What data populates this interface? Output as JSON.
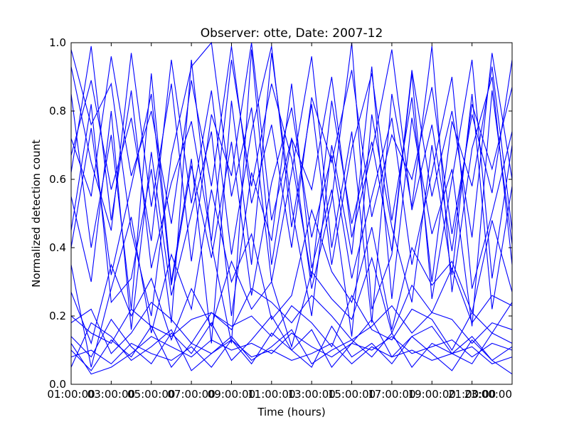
{
  "chart_data": {
    "type": "line",
    "title": "Observer: otte, Date: 2007-12",
    "xlabel": "Time (hours)",
    "ylabel": "Normalized detection count",
    "x_tick_labels": [
      "01:00:00",
      "03:00:00",
      "05:00:00",
      "07:00:00",
      "09:00:00",
      "11:00:00",
      "13:00:00",
      "15:00:00",
      "17:00:00",
      "19:00:00",
      "21:00:00",
      "23:00:00"
    ],
    "y_tick_labels": [
      "0.0",
      "0.2",
      "0.4",
      "0.6",
      "0.8",
      "1.0"
    ],
    "xlim": [
      1,
      23
    ],
    "ylim": [
      0,
      1
    ],
    "grid": false,
    "line_color": "#0000ff",
    "x": [
      1,
      2,
      3,
      4,
      5,
      6,
      7,
      8,
      9,
      10,
      11,
      12,
      13,
      14,
      15,
      16,
      17,
      18,
      19,
      20,
      21,
      22,
      23
    ],
    "series": [
      {
        "values": [
          0.45,
          0.82,
          0.24,
          0.31,
          0.63,
          0.18,
          0.95,
          0.41,
          0.12,
          0.98,
          0.35,
          0.72,
          0.28,
          0.54,
          1.0,
          0.22,
          0.38,
          0.91,
          0.25,
          0.6,
          0.95,
          0.31,
          0.7
        ]
      },
      {
        "values": [
          0.12,
          0.03,
          0.05,
          0.09,
          0.14,
          0.11,
          0.08,
          0.13,
          0.1,
          0.12,
          0.09,
          0.15,
          0.11,
          0.08,
          0.12,
          0.1,
          0.14,
          0.09,
          0.11,
          0.13,
          0.08,
          0.12,
          0.1
        ]
      },
      {
        "values": [
          0.98,
          0.76,
          0.88,
          0.45,
          0.2,
          0.67,
          0.93,
          1.0,
          0.55,
          0.81,
          0.3,
          0.62,
          0.96,
          0.4,
          0.74,
          0.18,
          0.85,
          0.52,
          0.99,
          0.27,
          0.69,
          0.9,
          0.35
        ]
      },
      {
        "values": [
          0.2,
          0.15,
          0.12,
          0.22,
          0.17,
          0.14,
          0.19,
          0.21,
          0.16,
          0.28,
          0.24,
          0.18,
          0.26,
          0.2,
          0.13,
          0.17,
          0.23,
          0.15,
          0.21,
          0.19,
          0.12,
          0.18,
          0.16
        ]
      },
      {
        "values": [
          0.62,
          0.99,
          0.48,
          0.86,
          0.34,
          0.59,
          0.77,
          0.42,
          0.95,
          0.58,
          0.88,
          0.66,
          0.31,
          0.83,
          0.47,
          0.71,
          0.39,
          0.92,
          0.55,
          0.8,
          0.43,
          0.97,
          0.6
        ]
      },
      {
        "values": [
          0.08,
          0.1,
          0.06,
          0.12,
          0.09,
          0.07,
          0.11,
          0.05,
          0.13,
          0.08,
          0.1,
          0.07,
          0.09,
          0.12,
          0.06,
          0.11,
          0.08,
          0.1,
          0.07,
          0.09,
          0.11,
          0.06,
          0.08
        ]
      },
      {
        "values": [
          0.35,
          0.05,
          0.28,
          0.49,
          0.15,
          0.38,
          0.22,
          0.57,
          0.3,
          0.44,
          0.19,
          0.26,
          0.51,
          0.33,
          0.24,
          0.46,
          0.16,
          0.4,
          0.29,
          0.36,
          0.21,
          0.48,
          0.27
        ]
      },
      {
        "values": [
          0.85,
          0.4,
          0.73,
          0.22,
          0.91,
          0.3,
          0.66,
          0.12,
          0.83,
          0.35,
          0.97,
          0.52,
          0.2,
          0.7,
          0.38,
          0.93,
          0.25,
          0.78,
          0.44,
          0.63,
          0.17,
          0.86,
          0.41
        ]
      },
      {
        "values": [
          0.18,
          0.22,
          0.09,
          0.15,
          0.24,
          0.19,
          0.12,
          0.21,
          0.17,
          0.2,
          0.14,
          0.23,
          0.18,
          0.11,
          0.26,
          0.16,
          0.13,
          0.22,
          0.19,
          0.1,
          0.21,
          0.15,
          0.24
        ]
      },
      {
        "values": [
          0.72,
          0.55,
          0.96,
          0.61,
          0.8,
          0.47,
          0.89,
          0.58,
          0.99,
          0.53,
          0.76,
          0.4,
          0.84,
          0.65,
          0.92,
          0.49,
          0.73,
          0.6,
          0.87,
          0.44,
          0.79,
          0.56,
          0.95
        ]
      },
      {
        "values": [
          0.05,
          0.18,
          0.14,
          0.07,
          0.11,
          0.16,
          0.04,
          0.09,
          0.13,
          0.06,
          0.15,
          0.1,
          0.05,
          0.17,
          0.08,
          0.12,
          0.06,
          0.14,
          0.09,
          0.04,
          0.13,
          0.07,
          0.11
        ]
      },
      {
        "values": [
          0.55,
          0.3,
          0.8,
          0.16,
          0.68,
          0.26,
          0.5,
          0.74,
          0.2,
          0.62,
          0.42,
          0.88,
          0.34,
          0.57,
          0.14,
          0.79,
          0.46,
          0.24,
          0.7,
          0.32,
          0.85,
          0.22,
          0.58
        ]
      },
      {
        "values": [
          0.27,
          0.12,
          0.35,
          0.2,
          0.31,
          0.13,
          0.28,
          0.17,
          0.36,
          0.22,
          0.3,
          0.11,
          0.33,
          0.25,
          0.19,
          0.37,
          0.15,
          0.29,
          0.21,
          0.34,
          0.18,
          0.26,
          0.23
        ]
      },
      {
        "values": [
          0.93,
          0.65,
          0.45,
          0.97,
          0.52,
          0.88,
          0.36,
          0.79,
          0.61,
          1.0,
          0.48,
          0.72,
          0.57,
          0.9,
          0.43,
          0.68,
          0.98,
          0.51,
          0.76,
          0.39,
          0.82,
          0.63,
          0.87
        ]
      },
      {
        "values": [
          0.14,
          0.08,
          0.19,
          0.11,
          0.06,
          0.15,
          0.09,
          0.18,
          0.07,
          0.13,
          0.2,
          0.1,
          0.16,
          0.05,
          0.12,
          0.19,
          0.08,
          0.14,
          0.17,
          0.09,
          0.06,
          0.15,
          0.12
        ]
      },
      {
        "values": [
          0.4,
          0.75,
          0.32,
          0.58,
          0.85,
          0.29,
          0.64,
          0.37,
          0.71,
          0.26,
          0.59,
          0.81,
          0.43,
          0.67,
          0.31,
          0.55,
          0.78,
          0.35,
          0.62,
          0.9,
          0.28,
          0.5,
          0.74
        ]
      },
      {
        "values": [
          0.1,
          0.04,
          0.13,
          0.08,
          0.17,
          0.05,
          0.12,
          0.09,
          0.14,
          0.07,
          0.11,
          0.16,
          0.06,
          0.1,
          0.13,
          0.08,
          0.15,
          0.05,
          0.12,
          0.09,
          0.14,
          0.07,
          0.03
        ]
      },
      {
        "values": [
          0.67,
          0.89,
          0.57,
          0.78,
          0.42,
          0.95,
          0.53,
          0.86,
          0.38,
          0.74,
          0.99,
          0.46,
          0.82,
          0.35,
          0.69,
          0.91,
          0.48,
          0.84,
          0.3,
          0.77,
          0.58,
          0.93,
          0.45
        ]
      }
    ]
  }
}
